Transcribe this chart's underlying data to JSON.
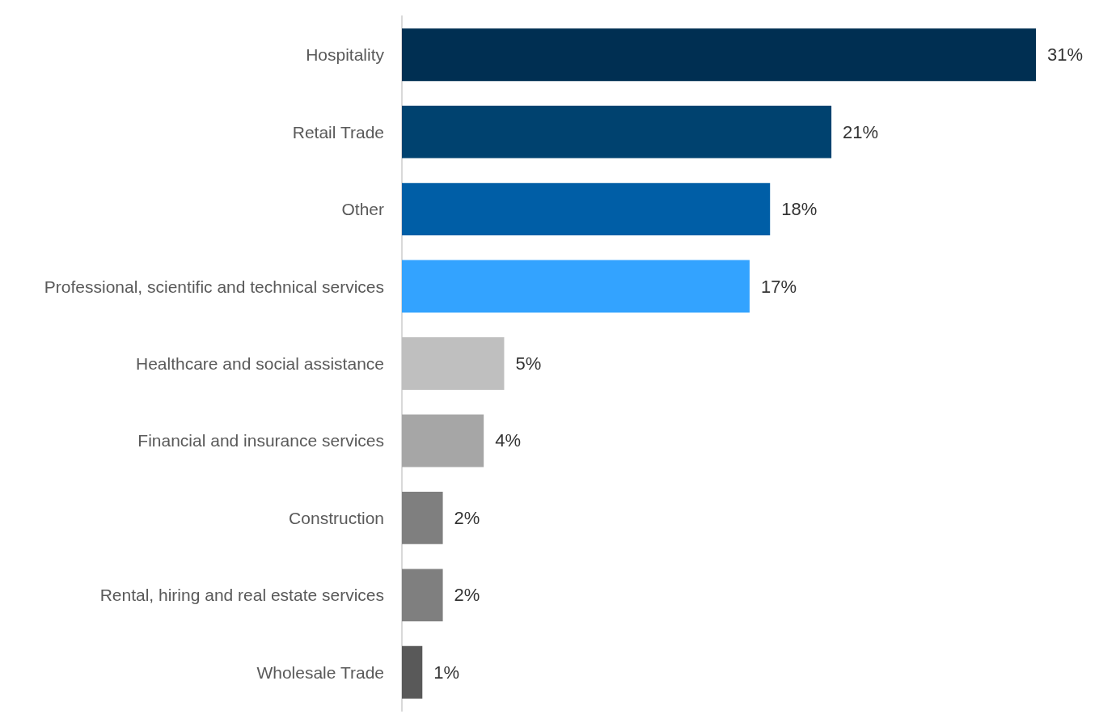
{
  "chart_data": {
    "type": "bar",
    "orientation": "horizontal",
    "categories": [
      "Hospitality",
      "Retail Trade",
      "Other",
      "Professional, scientific and technical services",
      "Healthcare and social assistance",
      "Financial and insurance services",
      "Construction",
      "Rental, hiring and real estate services",
      "Wholesale Trade"
    ],
    "values": [
      31,
      21,
      18,
      17,
      5,
      4,
      2,
      2,
      1
    ],
    "colors": [
      "#002f52",
      "#00426f",
      "#005ea6",
      "#33a3ff",
      "#bfbfbf",
      "#a6a6a6",
      "#7f7f7f",
      "#7f7f7f",
      "#595959"
    ],
    "value_labels": [
      "31%",
      "21%",
      "18%",
      "17%",
      "5%",
      "4%",
      "2%",
      "2%",
      "1%"
    ],
    "tick_labels": "y"
  }
}
